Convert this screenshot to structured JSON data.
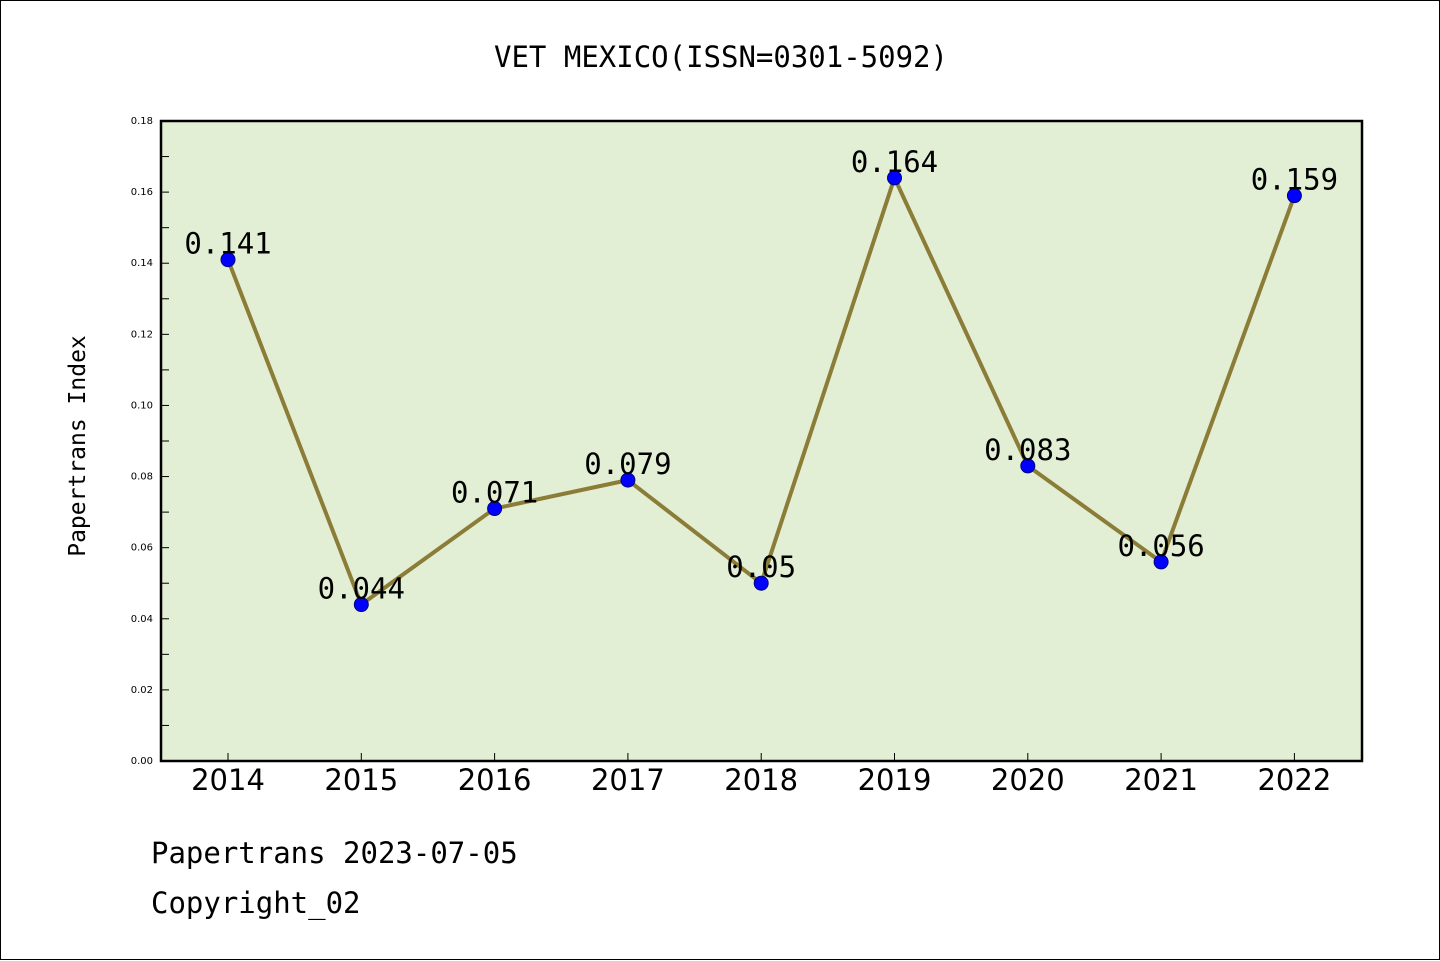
{
  "chart_data": {
    "type": "line",
    "title": "VET MEXICO(ISSN=0301-5092)",
    "xlabel": "",
    "ylabel": "Papertrans Index",
    "categories": [
      "2014",
      "2015",
      "2016",
      "2017",
      "2018",
      "2019",
      "2020",
      "2021",
      "2022"
    ],
    "series": [
      {
        "values": [
          0.141,
          0.044,
          0.071,
          0.079,
          0.05,
          0.164,
          0.083,
          0.056,
          0.159
        ],
        "data_labels": [
          "0.141",
          "0.044",
          "0.071",
          "0.079",
          "0.05",
          "0.164",
          "0.083",
          "0.056",
          "0.159"
        ]
      }
    ],
    "ylim": [
      0,
      0.18
    ],
    "yticks": [
      "0.00",
      "0.02",
      "0.04",
      "0.06",
      "0.08",
      "0.10",
      "0.12",
      "0.14",
      "0.16",
      "0.18"
    ],
    "grid": false,
    "legend": "none",
    "colors": {
      "plot_background": "#e2efd5",
      "line": "#8b7d37",
      "marker_fill": "#0000ff",
      "marker_edge": "#000080"
    }
  },
  "footer": {
    "line1": "Papertrans 2023-07-05",
    "line2": "Copyright_02"
  }
}
